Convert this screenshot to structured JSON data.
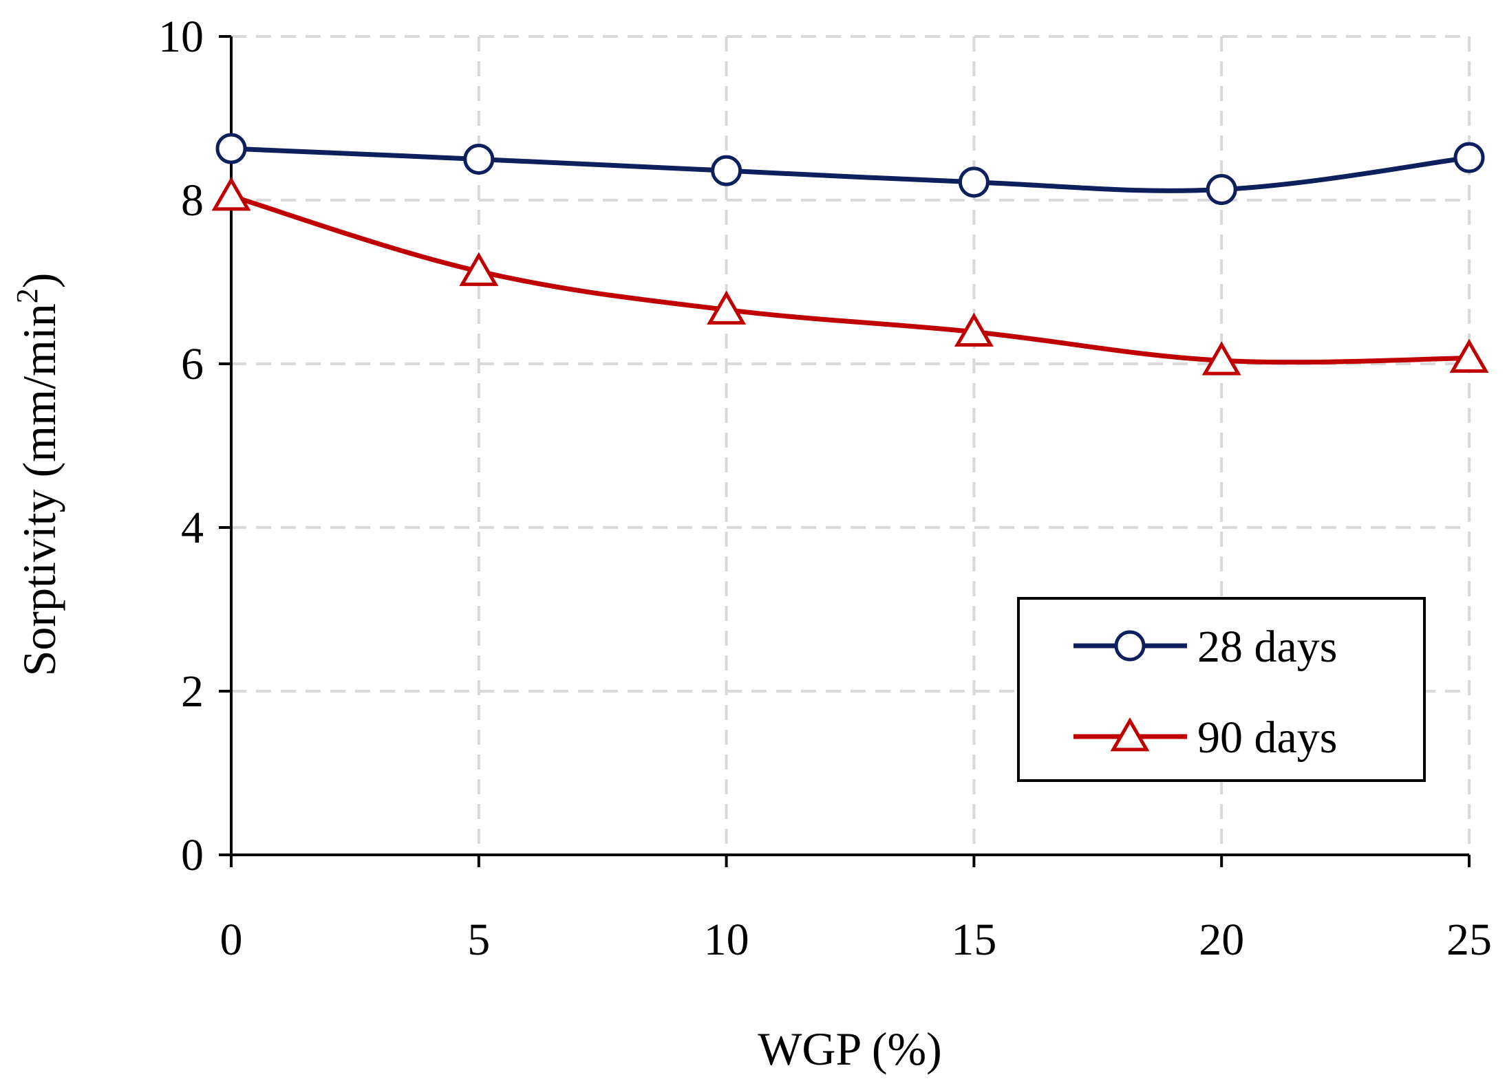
{
  "chart_data": {
    "type": "line",
    "title": "",
    "xlabel": "WGP (%)",
    "ylabel": "Sorptivity (mm/min",
    "ylabel_superscript": "2",
    "ylabel_close": ")",
    "x": [
      0,
      5,
      10,
      15,
      20,
      25
    ],
    "xlim": [
      0,
      25
    ],
    "ylim": [
      0,
      10
    ],
    "xticks": [
      "0",
      "5",
      "10",
      "15",
      "20",
      "25"
    ],
    "yticks": [
      "0",
      "2",
      "4",
      "6",
      "8",
      "10"
    ],
    "grid": true,
    "legend_position": "lower-right",
    "series": [
      {
        "name": "28 days",
        "values": [
          8.63,
          8.5,
          8.36,
          8.22,
          8.13,
          8.52
        ],
        "color": "#0d1f5c",
        "marker": "circle"
      },
      {
        "name": "90 days",
        "values": [
          8.05,
          7.13,
          6.66,
          6.39,
          6.04,
          6.07
        ],
        "color": "#c00000",
        "marker": "triangle"
      }
    ]
  }
}
